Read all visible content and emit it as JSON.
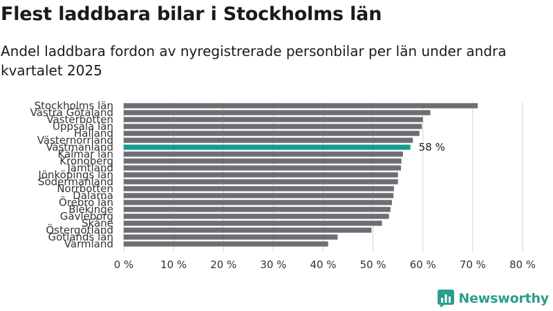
{
  "chart_data": {
    "type": "bar",
    "orientation": "horizontal",
    "title": "Flest laddbara bilar i Stockholms län",
    "subtitle": "Andel laddbara fordon av nyregistrerade personbilar per län under andra kvartalet 2025",
    "categories": [
      "Stockholms län",
      "Västra Götaland",
      "Västerbotten",
      "Uppsala län",
      "Halland",
      "Västernorrland",
      "Västmanland",
      "Kalmar län",
      "Kronoberg",
      "Jämtland",
      "Jönköpings län",
      "Södermanland",
      "Norrbotten",
      "Dalarna",
      "Örebro län",
      "Blekinge",
      "Gävleborg",
      "Skåne",
      "Östergötland",
      "Gotlands län",
      "Värmland"
    ],
    "values": [
      71,
      61.5,
      60,
      59.8,
      59.3,
      58,
      57.5,
      56,
      55.7,
      55.6,
      55,
      55,
      54.2,
      54.1,
      53.8,
      53.5,
      53.2,
      51.8,
      49.7,
      42.9,
      41
    ],
    "highlight_index": 6,
    "highlight_label": "58 %",
    "xlim": [
      0,
      80
    ],
    "x_ticks": [
      "0 %",
      "10 %",
      "20 %",
      "30 %",
      "40 %",
      "50 %",
      "60 %",
      "70 %",
      "80 %"
    ],
    "grid": "vertical",
    "colors": {
      "bar": "#6e6d73",
      "highlight": "#119c8d",
      "grid": "#cfcfcf"
    }
  },
  "brand": {
    "name": "Newsworthy",
    "icon": "bar-chart-logo-icon",
    "color": "#2a9d8f"
  }
}
